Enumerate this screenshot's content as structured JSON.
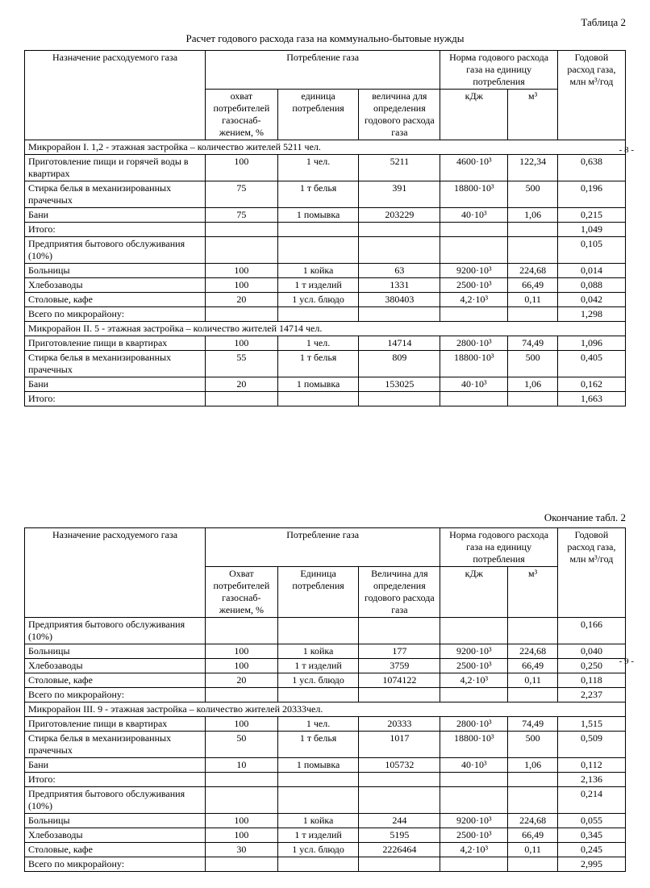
{
  "table_label_top": "Таблица 2",
  "title": "Расчет годового расхода газа на коммунально-бытовые нужды",
  "table_label_bottom": "Окончание табл. 2",
  "page_numbers": {
    "top": "- 8 -",
    "bottom": "- 9 -"
  },
  "headers": {
    "h_name": "Назначение расходуемого газа",
    "h_consumption": "Потребление газа",
    "h_coverage": "охват потребителей газоснаб-жением, %",
    "h_coverage2": "Охват потребителей газоснаб-жением, %",
    "h_unit": "единица потребления",
    "h_unit2": "Единица потребления",
    "h_value": "величина для определения годового расхода газа",
    "h_value2": "Величина для определения годового расхода газа",
    "h_norm": "Норма годового расхода газа на единицу потребления",
    "h_norm2": "Норма годового расхода газа на единицу потребления",
    "h_kj": "кДж",
    "h_m3": "м³",
    "h_annual": "Годовой расход газа, млн м³/год"
  },
  "sections": {
    "s1": "Микрорайон I. 1,2 - этажная застройка – количество жителей  5211 чел.",
    "s2": "Микрорайон II. 5 - этажная застройка – количество жителей 14714 чел.",
    "s3": "Микрорайон III. 9 - этажная застройка – количество жителей  20333чел."
  },
  "rows_top": [
    {
      "name": "Приготовление пищи и горячей воды в квартирах",
      "cov": "100",
      "unit": "1 чел.",
      "val": "5211",
      "kj": "4600·10³",
      "m3": "122,34",
      "ann": "0,638"
    },
    {
      "name": "Стирка белья в механизированных прачечных",
      "cov": "75",
      "unit": "1 т белья",
      "val": "391",
      "kj": "18800·10³",
      "m3": "500",
      "ann": "0,196"
    },
    {
      "name": "Бани",
      "cov": "75",
      "unit": "1 помывка",
      "val": "203229",
      "kj": "40·10³",
      "m3": "1,06",
      "ann": "0,215"
    },
    {
      "name": "Итого:",
      "cov": "",
      "unit": "",
      "val": "",
      "kj": "",
      "m3": "",
      "ann": "1,049"
    },
    {
      "name": "Предприятия бытового обслуживания (10%)",
      "cov": "",
      "unit": "",
      "val": "",
      "kj": "",
      "m3": "",
      "ann": "0,105"
    },
    {
      "name": "Больницы",
      "cov": "100",
      "unit": "1 койка",
      "val": "63",
      "kj": "9200·10³",
      "m3": "224,68",
      "ann": "0,014"
    },
    {
      "name": "Хлебозаводы",
      "cov": "100",
      "unit": "1 т изделий",
      "val": "1331",
      "kj": "2500·10³",
      "m3": "66,49",
      "ann": "0,088"
    },
    {
      "name": "Столовые, кафе",
      "cov": "20",
      "unit": "1 усл. блюдо",
      "val": "380403",
      "kj": "4,2·10³",
      "m3": "0,11",
      "ann": "0,042"
    },
    {
      "name": "Всего по микрорайону:",
      "cov": "",
      "unit": "",
      "val": "",
      "kj": "",
      "m3": "",
      "ann": "1,298"
    }
  ],
  "rows_top2": [
    {
      "name": "Приготовление пищи в квартирах",
      "cov": "100",
      "unit": "1 чел.",
      "val": "14714",
      "kj": "2800·10³",
      "m3": "74,49",
      "ann": "1,096"
    },
    {
      "name": "Стирка белья в механизированных прачечных",
      "cov": "55",
      "unit": "1 т белья",
      "val": "809",
      "kj": "18800·10³",
      "m3": "500",
      "ann": "0,405"
    },
    {
      "name": "Бани",
      "cov": "20",
      "unit": "1 помывка",
      "val": "153025",
      "kj": "40·10³",
      "m3": "1,06",
      "ann": "0,162"
    },
    {
      "name": "Итого:",
      "cov": "",
      "unit": "",
      "val": "",
      "kj": "",
      "m3": "",
      "ann": "1,663"
    }
  ],
  "rows_bot1": [
    {
      "name": "Предприятия бытового обслуживания (10%)",
      "cov": "",
      "unit": "",
      "val": "",
      "kj": "",
      "m3": "",
      "ann": "0,166"
    },
    {
      "name": "Больницы",
      "cov": "100",
      "unit": "1 койка",
      "val": "177",
      "kj": "9200·10³",
      "m3": "224,68",
      "ann": "0,040"
    },
    {
      "name": "Хлебозаводы",
      "cov": "100",
      "unit": "1 т изделий",
      "val": "3759",
      "kj": "2500·10³",
      "m3": "66,49",
      "ann": "0,250"
    },
    {
      "name": "Столовые, кафе",
      "cov": "20",
      "unit": "1 усл. блюдо",
      "val": "1074122",
      "kj": "4,2·10³",
      "m3": "0,11",
      "ann": "0,118"
    },
    {
      "name": "Всего по микрорайону:",
      "cov": "",
      "unit": "",
      "val": "",
      "kj": "",
      "m3": "",
      "ann": "2,237"
    }
  ],
  "rows_bot2": [
    {
      "name": "Приготовление пищи в квартирах",
      "cov": "100",
      "unit": "1 чел.",
      "val": "20333",
      "kj": "2800·10³",
      "m3": "74,49",
      "ann": "1,515"
    },
    {
      "name": "Стирка белья в механизированных прачечных",
      "cov": "50",
      "unit": "1 т белья",
      "val": "1017",
      "kj": "18800·10³",
      "m3": "500",
      "ann": "0,509"
    },
    {
      "name": "Бани",
      "cov": "10",
      "unit": "1 помывка",
      "val": "105732",
      "kj": "40·10³",
      "m3": "1,06",
      "ann": "0,112"
    },
    {
      "name": "Итого:",
      "cov": "",
      "unit": "",
      "val": "",
      "kj": "",
      "m3": "",
      "ann": "2,136"
    },
    {
      "name": "Предприятия бытового обслуживания (10%)",
      "cov": "",
      "unit": "",
      "val": "",
      "kj": "",
      "m3": "",
      "ann": "0,214"
    },
    {
      "name": "Больницы",
      "cov": "100",
      "unit": "1 койка",
      "val": "244",
      "kj": "9200·10³",
      "m3": "224,68",
      "ann": "0,055"
    },
    {
      "name": "Хлебозаводы",
      "cov": "100",
      "unit": "1 т изделий",
      "val": "5195",
      "kj": "2500·10³",
      "m3": "66,49",
      "ann": "0,345"
    },
    {
      "name": "Столовые, кафе",
      "cov": "30",
      "unit": "1 усл. блюдо",
      "val": "2226464",
      "kj": "4,2·10³",
      "m3": "0,11",
      "ann": "0,245"
    },
    {
      "name": "Всего по микрорайону:",
      "cov": "",
      "unit": "",
      "val": "",
      "kj": "",
      "m3": "",
      "ann": "2,995"
    }
  ],
  "colwidths": [
    "200",
    "80",
    "90",
    "90",
    "75",
    "55",
    "75"
  ]
}
